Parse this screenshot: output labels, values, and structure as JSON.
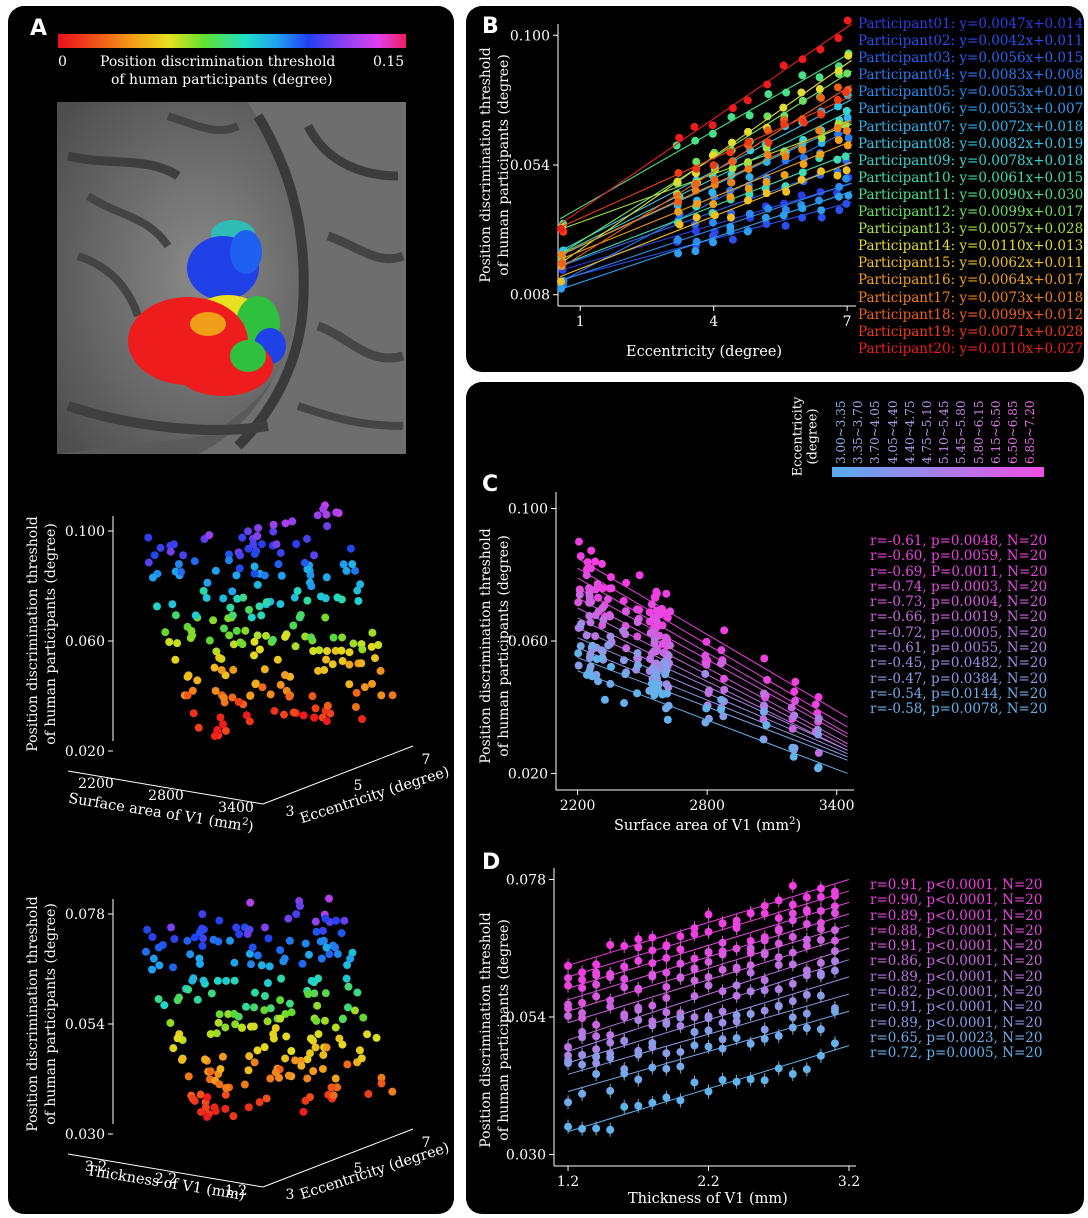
{
  "panels": {
    "A": {
      "label": "A",
      "colorbar": {
        "min": "0",
        "max": "0.15",
        "title1": "Position discrimination threshold",
        "title2": "of human participants (degree)"
      },
      "plot1": {
        "zlabel1": "Position discrimination threshold",
        "zlabel2": "of human participants (degree)",
        "zticks": [
          "0.100",
          "0.060",
          "0.020"
        ],
        "xlabel": "Surface area of V1 (mm",
        "xlabel_sup": "2",
        "xticks": [
          "2200",
          "2800",
          "3400"
        ],
        "ylabel": "Eccentricity (degree)",
        "yticks": [
          "3",
          "5",
          "7"
        ]
      },
      "plot2": {
        "zlabel1": "Position discrimination threshold",
        "zlabel2": "of human participants (degree)",
        "zticks": [
          "0.078",
          "0.054",
          "0.030"
        ],
        "xlabel": "Thickness of V1 (mm)",
        "xticks": [
          "3.2",
          "2.2",
          "1.2"
        ],
        "ylabel": "Eccentricity (degree)",
        "yticks": [
          "3",
          "5",
          "7"
        ]
      }
    },
    "B": {
      "label": "B",
      "ylabel1": "Position discrimination threshold",
      "ylabel2": "of human participants (degree)",
      "xlabel": "Eccentricity (degree)",
      "xticks": [
        "1",
        "4",
        "7"
      ],
      "yticks": [
        "0.100",
        "0.054",
        "0.008"
      ],
      "legend": [
        {
          "text": "Participant01: y=0.0047x+0.014",
          "color": "#2a3fe8"
        },
        {
          "text": "Participant02: y=0.0042x+0.011",
          "color": "#2a50ee"
        },
        {
          "text": "Participant03: y=0.0056x+0.015",
          "color": "#2a63f0"
        },
        {
          "text": "Participant04: y=0.0083x+0.008",
          "color": "#2a78f0"
        },
        {
          "text": "Participant05: y=0.0053x+0.010",
          "color": "#2b8cf0"
        },
        {
          "text": "Participant06: y=0.0053x+0.007",
          "color": "#2da0f0"
        },
        {
          "text": "Participant07: y=0.0072x+0.018",
          "color": "#30b4ee"
        },
        {
          "text": "Participant08: y=0.0082x+0.019",
          "color": "#33c6e6"
        },
        {
          "text": "Participant09: y=0.0078x+0.018",
          "color": "#36d6d0"
        },
        {
          "text": "Participant10: y=0.0061x+0.015",
          "color": "#3cddb0"
        },
        {
          "text": "Participant11: y=0.0090x+0.030",
          "color": "#48e088"
        },
        {
          "text": "Participant12: y=0.0099x+0.017",
          "color": "#6ee060"
        },
        {
          "text": "Participant13: y=0.0057x+0.028",
          "color": "#a8e040"
        },
        {
          "text": "Participant14: y=0.0110x+0.013",
          "color": "#e0dc30"
        },
        {
          "text": "Participant15: y=0.0062x+0.011",
          "color": "#f0c020"
        },
        {
          "text": "Participant16: y=0.0064x+0.017",
          "color": "#f0a018"
        },
        {
          "text": "Participant17: y=0.0073x+0.018",
          "color": "#f08018"
        },
        {
          "text": "Participant18: y=0.0099x+0.012",
          "color": "#f06018"
        },
        {
          "text": "Participant19: y=0.0071x+0.028",
          "color": "#ef3a18"
        },
        {
          "text": "Participant20: y=0.0110x+0.027",
          "color": "#ee1c1c"
        }
      ]
    },
    "C": {
      "label": "C",
      "ylabel1": "Position discrimination threshold",
      "ylabel2": "of human participants (degree)",
      "xlabel": "Surface area of V1 (mm",
      "xlabel_sup": "2",
      "xticks": [
        "2200",
        "2800",
        "3400"
      ],
      "yticks": [
        "0.100",
        "0.060",
        "0.020"
      ],
      "ecc_title1": "Eccentricity",
      "ecc_title2": "(degree)",
      "ecc_bins": [
        "3.00~3.35",
        "3.35~3.70",
        "3.70~4.05",
        "4.05~4.40",
        "4.40~4.75",
        "4.75~5.10",
        "5.10~5.45",
        "5.45~5.80",
        "5.80~6.15",
        "6.15~6.50",
        "6.50~6.85",
        "6.85~7.20"
      ],
      "stats": [
        {
          "text": "r=-0.61, p=0.0048, N=20",
          "color": "#f03ee0"
        },
        {
          "text": "r=-0.60, p=0.0059, N=20",
          "color": "#ee42e0"
        },
        {
          "text": "r=-0.69, P=0.0011, N=20",
          "color": "#e848e0"
        },
        {
          "text": "r=-0.74, p=0.0003, N=20",
          "color": "#e050e0"
        },
        {
          "text": "r=-0.73, p=0.0004, N=20",
          "color": "#d85ae0"
        },
        {
          "text": "r=-0.66, p=0.0019, N=20",
          "color": "#cc66e0"
        },
        {
          "text": "r=-0.72, p=0.0005, N=20",
          "color": "#be72e2"
        },
        {
          "text": "r=-0.61, p=0.0055, N=20",
          "color": "#ae80e4"
        },
        {
          "text": "r=-0.45, p=0.0482, N=20",
          "color": "#9c8ee6"
        },
        {
          "text": "r=-0.47, p=0.0384, N=20",
          "color": "#889ce8"
        },
        {
          "text": "r=-0.54, p=0.0144, N=20",
          "color": "#74aaea"
        },
        {
          "text": "r=-0.58, p=0.0078, N=20",
          "color": "#62b2ec"
        }
      ]
    },
    "D": {
      "label": "D",
      "ylabel1": "Position discrimination threshold",
      "ylabel2": "of human participants (degree)",
      "xlabel": "Thickness of V1 (mm)",
      "xticks": [
        "1.2",
        "2.2",
        "3.2"
      ],
      "yticks": [
        "0.078",
        "0.054",
        "0.030"
      ],
      "stats": [
        {
          "text": "r=0.91, p<0.0001, N=20",
          "color": "#f03ee0"
        },
        {
          "text": "r=0.90, p<0.0001, N=20",
          "color": "#ee42e0"
        },
        {
          "text": "r=0.89, p<0.0001, N=20",
          "color": "#e848e0"
        },
        {
          "text": "r=0.88, p<0.0001, N=20",
          "color": "#e050e0"
        },
        {
          "text": "r=0.91, p<0.0001, N=20",
          "color": "#d85ae0"
        },
        {
          "text": "r=0.86, p<0.0001, N=20",
          "color": "#cc66e0"
        },
        {
          "text": "r=0.89, p<0.0001, N=20",
          "color": "#be72e2"
        },
        {
          "text": "r=0.82, p<0.0001, N=20",
          "color": "#ae80e4"
        },
        {
          "text": "r=0.91, p<0.0001, N=20",
          "color": "#9c8ee6"
        },
        {
          "text": "r=0.89, p<0.0001, N=20",
          "color": "#889ce8"
        },
        {
          "text": "r=0.65, p=0.0023, N=20",
          "color": "#74aaea"
        },
        {
          "text": "r=0.72, p=0.0005, N=20",
          "color": "#62b2ec"
        }
      ]
    }
  },
  "chart_data": [
    {
      "panel": "B",
      "type": "scatter",
      "xlabel": "Eccentricity (degree)",
      "ylabel": "Position discrimination threshold of human participants (degree)",
      "xlim": [
        0.5,
        7.2
      ],
      "ylim": [
        0.004,
        0.104
      ],
      "ticks_x": [
        1,
        4,
        7
      ],
      "ticks_y": [
        0.008,
        0.054,
        0.1
      ],
      "fits": [
        {
          "slope": 0.0047,
          "intercept": 0.014
        },
        {
          "slope": 0.0042,
          "intercept": 0.011
        },
        {
          "slope": 0.0056,
          "intercept": 0.015
        },
        {
          "slope": 0.0083,
          "intercept": 0.008
        },
        {
          "slope": 0.0053,
          "intercept": 0.01
        },
        {
          "slope": 0.0053,
          "intercept": 0.007
        },
        {
          "slope": 0.0072,
          "intercept": 0.018
        },
        {
          "slope": 0.0082,
          "intercept": 0.019
        },
        {
          "slope": 0.0078,
          "intercept": 0.018
        },
        {
          "slope": 0.0061,
          "intercept": 0.015
        },
        {
          "slope": 0.009,
          "intercept": 0.03
        },
        {
          "slope": 0.0099,
          "intercept": 0.017
        },
        {
          "slope": 0.0057,
          "intercept": 0.028
        },
        {
          "slope": 0.011,
          "intercept": 0.013
        },
        {
          "slope": 0.0062,
          "intercept": 0.011
        },
        {
          "slope": 0.0064,
          "intercept": 0.017
        },
        {
          "slope": 0.0073,
          "intercept": 0.018
        },
        {
          "slope": 0.0099,
          "intercept": 0.012
        },
        {
          "slope": 0.0071,
          "intercept": 0.028
        },
        {
          "slope": 0.011,
          "intercept": 0.027
        }
      ],
      "x_samples": [
        0.6,
        3.2,
        3.6,
        4.0,
        4.4,
        4.8,
        5.2,
        5.6,
        6.0,
        6.4,
        6.8,
        7.0
      ]
    },
    {
      "panel": "C",
      "type": "scatter",
      "xlabel": "Surface area of V1 (mm2)",
      "ylabel": "Position discrimination threshold of human participants (degree)",
      "xlim": [
        2100,
        3480
      ],
      "ylim": [
        0.015,
        0.105
      ],
      "ticks_x": [
        2200,
        2800,
        3400
      ],
      "ticks_y": [
        0.02,
        0.06,
        0.1
      ],
      "surface_areas": [
        2210,
        2260,
        2290,
        2320,
        2350,
        2420,
        2480,
        2540,
        2560,
        2570,
        2600,
        2610,
        2620,
        2800,
        2870,
        3070,
        3200,
        3310,
        2250,
        2560
      ],
      "lines": [
        {
          "y_at_2200": 0.085,
          "y_at_3450": 0.037
        },
        {
          "y_at_2200": 0.082,
          "y_at_3450": 0.034
        },
        {
          "y_at_2200": 0.079,
          "y_at_3450": 0.032
        },
        {
          "y_at_2200": 0.076,
          "y_at_3450": 0.031
        },
        {
          "y_at_2200": 0.073,
          "y_at_3450": 0.029
        },
        {
          "y_at_2200": 0.07,
          "y_at_3450": 0.028
        },
        {
          "y_at_2200": 0.067,
          "y_at_3450": 0.027
        },
        {
          "y_at_2200": 0.064,
          "y_at_3450": 0.027
        },
        {
          "y_at_2200": 0.061,
          "y_at_3450": 0.026
        },
        {
          "y_at_2200": 0.058,
          "y_at_3450": 0.025
        },
        {
          "y_at_2200": 0.055,
          "y_at_3450": 0.024
        },
        {
          "y_at_2200": 0.051,
          "y_at_3450": 0.02
        }
      ]
    },
    {
      "panel": "D",
      "type": "scatter",
      "xlabel": "Thickness of V1 (mm)",
      "ylabel": "Position discrimination threshold of human participants (degree)",
      "xlim": [
        1.1,
        3.25
      ],
      "ylim": [
        0.028,
        0.08
      ],
      "ticks_x": [
        1.2,
        2.2,
        3.2
      ],
      "ticks_y": [
        0.03,
        0.054,
        0.078
      ],
      "thickness": [
        1.2,
        1.3,
        1.4,
        1.5,
        1.6,
        1.7,
        1.8,
        1.9,
        2.0,
        2.1,
        2.2,
        2.3,
        2.4,
        2.5,
        2.6,
        2.7,
        2.8,
        2.9,
        3.0,
        3.1
      ],
      "lines": [
        {
          "y_at_1_2": 0.063,
          "y_at_3_2": 0.078
        },
        {
          "y_at_1_2": 0.061,
          "y_at_3_2": 0.076
        },
        {
          "y_at_1_2": 0.059,
          "y_at_3_2": 0.074
        },
        {
          "y_at_1_2": 0.057,
          "y_at_3_2": 0.072
        },
        {
          "y_at_1_2": 0.055,
          "y_at_3_2": 0.07
        },
        {
          "y_at_1_2": 0.053,
          "y_at_3_2": 0.068
        },
        {
          "y_at_1_2": 0.05,
          "y_at_3_2": 0.066
        },
        {
          "y_at_1_2": 0.048,
          "y_at_3_2": 0.064
        },
        {
          "y_at_1_2": 0.046,
          "y_at_3_2": 0.061
        },
        {
          "y_at_1_2": 0.044,
          "y_at_3_2": 0.058
        },
        {
          "y_at_1_2": 0.041,
          "y_at_3_2": 0.055
        },
        {
          "y_at_1_2": 0.034,
          "y_at_3_2": 0.049
        }
      ]
    },
    {
      "panel": "A",
      "type": "scatter",
      "note_axes": [
        "surface area / thickness of V1",
        "eccentricity 3-7",
        "threshold"
      ],
      "zlim_top": [
        0.02,
        0.1
      ],
      "zlim_bottom": [
        0.03,
        0.078
      ]
    }
  ]
}
